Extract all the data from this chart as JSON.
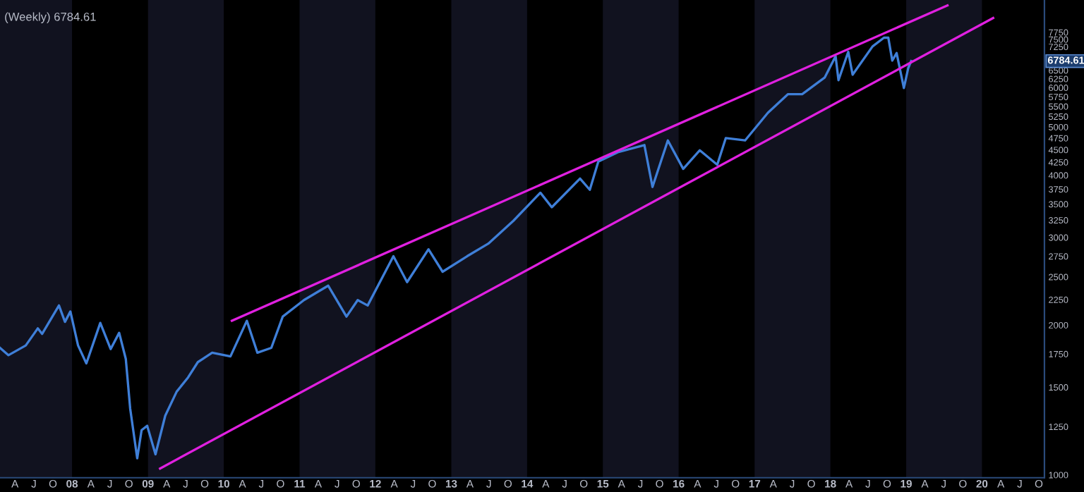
{
  "chart_data": {
    "type": "line",
    "title": "(Weekly) 6784.61",
    "log": "y",
    "xlim": [
      "2007-01-19",
      "2020-10-28"
    ],
    "ylim": [
      987,
      9000
    ],
    "yticks": [
      1000,
      1250,
      1500,
      1750,
      2000,
      2250,
      2500,
      2750,
      3000,
      3250,
      3500,
      3750,
      4000,
      4250,
      4500,
      4750,
      5000,
      5250,
      5500,
      5750,
      6000,
      6250,
      6500,
      7250,
      7500,
      7750
    ],
    "xticks": [
      {
        "value": "2007-04-01",
        "label": "A"
      },
      {
        "value": "2007-07-01",
        "label": "J"
      },
      {
        "value": "2007-10-01",
        "label": "O"
      },
      {
        "value": "2008-01-01",
        "label": "08"
      },
      {
        "value": "2008-04-01",
        "label": "A"
      },
      {
        "value": "2008-07-01",
        "label": "J"
      },
      {
        "value": "2008-10-01",
        "label": "O"
      },
      {
        "value": "2009-01-01",
        "label": "09"
      },
      {
        "value": "2009-04-01",
        "label": "A"
      },
      {
        "value": "2009-07-01",
        "label": "J"
      },
      {
        "value": "2009-10-01",
        "label": "O"
      },
      {
        "value": "2010-01-01",
        "label": "10"
      },
      {
        "value": "2010-04-01",
        "label": "A"
      },
      {
        "value": "2010-07-01",
        "label": "J"
      },
      {
        "value": "2010-10-01",
        "label": "O"
      },
      {
        "value": "2011-01-01",
        "label": "11"
      },
      {
        "value": "2011-04-01",
        "label": "A"
      },
      {
        "value": "2011-07-01",
        "label": "J"
      },
      {
        "value": "2011-10-01",
        "label": "O"
      },
      {
        "value": "2012-01-01",
        "label": "12"
      },
      {
        "value": "2012-04-01",
        "label": "A"
      },
      {
        "value": "2012-07-01",
        "label": "J"
      },
      {
        "value": "2012-10-01",
        "label": "O"
      },
      {
        "value": "2013-01-01",
        "label": "13"
      },
      {
        "value": "2013-04-01",
        "label": "A"
      },
      {
        "value": "2013-07-01",
        "label": "J"
      },
      {
        "value": "2013-10-01",
        "label": "O"
      },
      {
        "value": "2014-01-01",
        "label": "14"
      },
      {
        "value": "2014-04-01",
        "label": "A"
      },
      {
        "value": "2014-07-01",
        "label": "J"
      },
      {
        "value": "2014-10-01",
        "label": "O"
      },
      {
        "value": "2015-01-01",
        "label": "15"
      },
      {
        "value": "2015-04-01",
        "label": "A"
      },
      {
        "value": "2015-07-01",
        "label": "J"
      },
      {
        "value": "2015-10-01",
        "label": "O"
      },
      {
        "value": "2016-01-01",
        "label": "16"
      },
      {
        "value": "2016-04-01",
        "label": "A"
      },
      {
        "value": "2016-07-01",
        "label": "J"
      },
      {
        "value": "2016-10-01",
        "label": "O"
      },
      {
        "value": "2017-01-01",
        "label": "17"
      },
      {
        "value": "2017-04-01",
        "label": "A"
      },
      {
        "value": "2017-07-01",
        "label": "J"
      },
      {
        "value": "2017-10-01",
        "label": "O"
      },
      {
        "value": "2018-01-01",
        "label": "18"
      },
      {
        "value": "2018-04-01",
        "label": "A"
      },
      {
        "value": "2018-07-01",
        "label": "J"
      },
      {
        "value": "2018-10-01",
        "label": "O"
      },
      {
        "value": "2019-01-01",
        "label": "19"
      },
      {
        "value": "2019-04-01",
        "label": "A"
      },
      {
        "value": "2019-07-01",
        "label": "J"
      },
      {
        "value": "2019-10-01",
        "label": "O"
      },
      {
        "value": "2020-01-01",
        "label": "20"
      },
      {
        "value": "2020-04-01",
        "label": "A"
      },
      {
        "value": "2020-07-01",
        "label": "J"
      },
      {
        "value": "2020-10-01",
        "label": "O"
      }
    ],
    "bands": [
      {
        "axis": "x",
        "from": "2007-01-19",
        "to": "2008-01-01",
        "color": "#11121f"
      },
      {
        "axis": "x",
        "from": "2009-01-01",
        "to": "2010-01-01",
        "color": "#11121f"
      },
      {
        "axis": "x",
        "from": "2011-01-01",
        "to": "2012-01-01",
        "color": "#11121f"
      },
      {
        "axis": "x",
        "from": "2013-01-01",
        "to": "2014-01-01",
        "color": "#11121f"
      },
      {
        "axis": "x",
        "from": "2015-01-01",
        "to": "2016-01-01",
        "color": "#11121f"
      },
      {
        "axis": "x",
        "from": "2017-01-01",
        "to": "2018-01-01",
        "color": "#11121f"
      },
      {
        "axis": "x",
        "from": "2019-01-01",
        "to": "2020-01-01",
        "color": "#11121f"
      }
    ],
    "series": [
      {
        "color": "#3f7fd8",
        "x": [
          "2007-01-19",
          "2007-03-01",
          "2007-05-23",
          "2007-07-20",
          "2007-08-10",
          "2007-10-30",
          "2007-11-28",
          "2007-12-24",
          "2008-01-30",
          "2008-03-10",
          "2008-05-16",
          "2008-07-05",
          "2008-08-15",
          "2008-09-16",
          "2008-10-07",
          "2008-11-10",
          "2008-12-01",
          "2008-12-28",
          "2009-02-06",
          "2009-03-25",
          "2009-05-19",
          "2009-07-13",
          "2009-08-29",
          "2009-11-06",
          "2010-02-02",
          "2010-04-22",
          "2010-06-12",
          "2010-08-18",
          "2010-10-12",
          "2011-01-22",
          "2011-05-19",
          "2011-08-15",
          "2011-10-08",
          "2011-11-25",
          "2012-03-28",
          "2012-06-02",
          "2012-09-13",
          "2012-11-20",
          "2013-03-18",
          "2013-06-28",
          "2013-10-27",
          "2014-03-06",
          "2014-04-30",
          "2014-09-13",
          "2014-10-30",
          "2014-12-10",
          "2015-03-14",
          "2015-07-20",
          "2015-08-28",
          "2015-11-10",
          "2016-01-23",
          "2016-04-12",
          "2016-07-05",
          "2016-08-15",
          "2016-11-16",
          "2017-03-06",
          "2017-06-10",
          "2017-08-18",
          "2017-12-05",
          "2018-01-26",
          "2018-02-09",
          "2018-03-28",
          "2018-04-18",
          "2018-07-23",
          "2018-09-16",
          "2018-10-07",
          "2018-10-26",
          "2018-11-16",
          "2018-12-21",
          "2019-01-11",
          "2019-01-25"
        ],
        "values": [
          1800,
          1740,
          1820,
          1970,
          1920,
          2190,
          2030,
          2130,
          1820,
          1675,
          2020,
          1790,
          1930,
          1710,
          1360,
          1080,
          1230,
          1255,
          1100,
          1315,
          1470,
          1570,
          1685,
          1760,
          1730,
          2040,
          1760,
          1800,
          2080,
          2245,
          2400,
          2080,
          2245,
          2190,
          2750,
          2440,
          2840,
          2560,
          2750,
          2915,
          3240,
          3690,
          3450,
          3940,
          3740,
          4260,
          4450,
          4600,
          3790,
          4700,
          4120,
          4490,
          4200,
          4750,
          4700,
          5340,
          5820,
          5820,
          6290,
          6940,
          6210,
          7080,
          6370,
          7260,
          7560,
          7560,
          6800,
          7040,
          5990,
          6570,
          6784.61
        ]
      },
      {
        "color": "#e020e0",
        "x": [
          "2010-02-09",
          "2019-07-19"
        ],
        "values": [
          2040,
          8780
        ]
      },
      {
        "color": "#e020e0",
        "x": [
          "2009-02-28",
          "2020-02-24"
        ],
        "values": [
          1030,
          8280
        ]
      }
    ],
    "annotations": [
      "6784.61"
    ]
  }
}
